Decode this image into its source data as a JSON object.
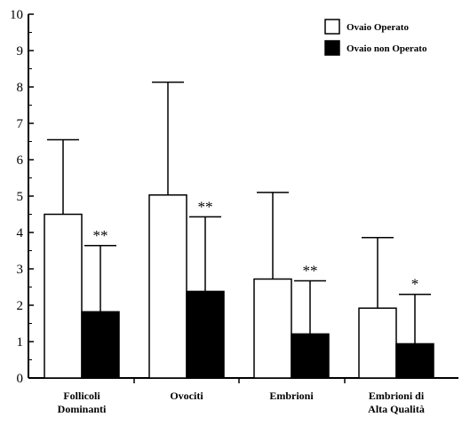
{
  "chart_data": {
    "type": "bar",
    "title": "",
    "xlabel": "",
    "ylabel": "",
    "ylim": [
      0,
      10
    ],
    "yticks": [
      0,
      1,
      2,
      3,
      4,
      5,
      6,
      7,
      8,
      9,
      10
    ],
    "grid": false,
    "legend_position": "top-right",
    "categories": [
      [
        "Follicoli",
        "Dominanti"
      ],
      [
        "Ovociti"
      ],
      [
        "Embrioni"
      ],
      [
        "Embrioni di",
        "Alta Qualità"
      ]
    ],
    "series": [
      {
        "name": "Ovaio Operato",
        "color": "#ffffff",
        "values": [
          4.5,
          5.03,
          2.72,
          1.92
        ],
        "error": [
          2.05,
          3.1,
          2.38,
          1.94
        ]
      },
      {
        "name": "Ovaio non Operato",
        "color": "#000000",
        "values": [
          1.82,
          2.38,
          1.21,
          0.94
        ],
        "error": [
          1.82,
          2.05,
          1.46,
          1.36
        ]
      }
    ],
    "annotations": [
      "**",
      "**",
      "**",
      "*"
    ]
  }
}
